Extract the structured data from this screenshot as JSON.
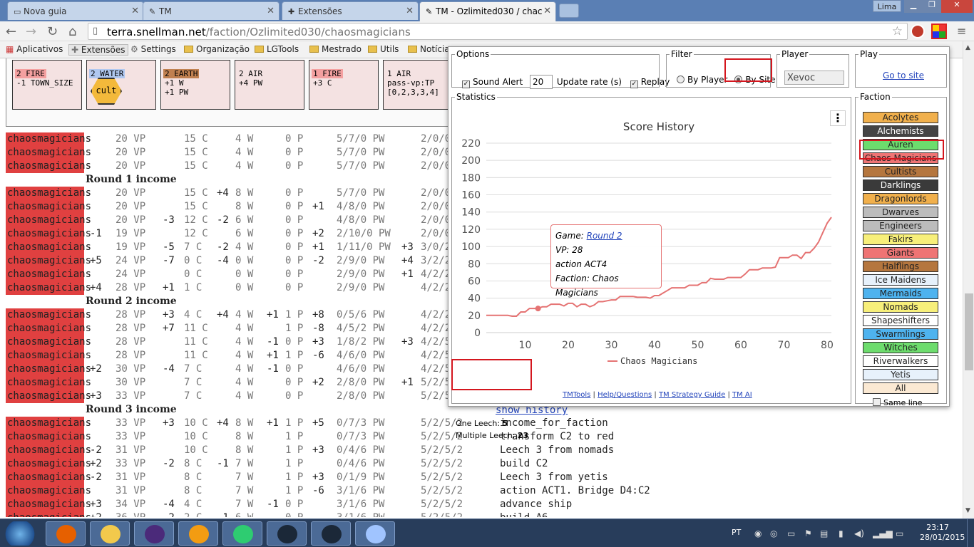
{
  "tabs": [
    {
      "label": "Nova guia",
      "icon": "page-icon"
    },
    {
      "label": "TM",
      "icon": "tools-icon"
    },
    {
      "label": "Extensões",
      "icon": "puzzle-icon"
    },
    {
      "label": "TM - Ozlimited030 / chac",
      "icon": "tools-icon"
    }
  ],
  "window": {
    "user": "Lima"
  },
  "address": {
    "host": "terra.snellman.net",
    "path": "/faction/Ozlimited030/chaosmagicians"
  },
  "bookmarks": [
    "Aplicativos",
    "Extensões",
    "Settings",
    "Organização",
    "LGTools",
    "Mestrado",
    "Utils",
    "Notícia"
  ],
  "cult_cards": [
    {
      "line1": "2 FIRE",
      "line2": "-1 TOWN_SIZE",
      "line3": "",
      "color": "#f4a0a0"
    },
    {
      "line1": "2 WATER",
      "line2": "",
      "line3": "",
      "color": "#b0c8f0",
      "badge": "cult"
    },
    {
      "line1": "2 EARTH",
      "line2": "+1 W",
      "line3": "+1 PW",
      "color": "#c08050"
    },
    {
      "line1": "2 AIR",
      "line2": "+4 PW",
      "line3": "",
      "color": ""
    },
    {
      "line1": "1 FIRE",
      "line2": "+3 C",
      "line3": "",
      "color": "#f4a0a0"
    },
    {
      "line1": "1 AIR",
      "line2": "pass-vp:TP",
      "line3": "[0,2,3,3,4]",
      "color": ""
    }
  ],
  "ledger": {
    "faction": "chaosmagicians",
    "rows": [
      {
        "dvp": "",
        "vp": "20 VP",
        "dc": "",
        "c": "15 C",
        "dw": "",
        "w": "4 W",
        "dp": "",
        "p": "0 P",
        "dpw": "",
        "pw": "5/7/0 PW",
        "dcult": "",
        "cult": "2/0/0"
      },
      {
        "dvp": "",
        "vp": "20 VP",
        "dc": "",
        "c": "15 C",
        "dw": "",
        "w": "4 W",
        "dp": "",
        "p": "0 P",
        "dpw": "",
        "pw": "5/7/0 PW",
        "dcult": "",
        "cult": "2/0/0"
      },
      {
        "dvp": "",
        "vp": "20 VP",
        "dc": "",
        "c": "15 C",
        "dw": "",
        "w": "4 W",
        "dp": "",
        "p": "0 P",
        "dpw": "",
        "pw": "5/7/0 PW",
        "dcult": "",
        "cult": "2/0/0"
      },
      {
        "head": "Round 1 income"
      },
      {
        "dvp": "",
        "vp": "20 VP",
        "dc": "",
        "c": "15 C",
        "dw": "+4",
        "w": "8 W",
        "dp": "",
        "p": "0 P",
        "dpw": "",
        "pw": "5/7/0 PW",
        "dcult": "",
        "cult": "2/0/0"
      },
      {
        "dvp": "",
        "vp": "20 VP",
        "dc": "",
        "c": "15 C",
        "dw": "",
        "w": "8 W",
        "dp": "",
        "p": "0 P",
        "dpw": "+1",
        "pw": "4/8/0 PW",
        "dcult": "",
        "cult": "2/0/0"
      },
      {
        "dvp": "",
        "vp": "20 VP",
        "dc": "-3",
        "c": "12 C",
        "dw": "-2",
        "w": "6 W",
        "dp": "",
        "p": "0 P",
        "dpw": "",
        "pw": "4/8/0 PW",
        "dcult": "",
        "cult": "2/0/0"
      },
      {
        "dvp": "-1",
        "vp": "19 VP",
        "dc": "",
        "c": "12 C",
        "dw": "",
        "w": "6 W",
        "dp": "",
        "p": "0 P",
        "dpw": "+2",
        "pw": "2/10/0 PW",
        "dcult": "",
        "cult": "2/0/0"
      },
      {
        "dvp": "",
        "vp": "19 VP",
        "dc": "-5",
        "c": "7 C",
        "dw": "-2",
        "w": "4 W",
        "dp": "",
        "p": "0 P",
        "dpw": "+1",
        "pw": "1/11/0 PW",
        "dcult": "+3",
        "cult": "3/0/2"
      },
      {
        "dvp": "+5",
        "vp": "24 VP",
        "dc": "-7",
        "c": "0 C",
        "dw": "-4",
        "w": "0 W",
        "dp": "",
        "p": "0 P",
        "dpw": "-2",
        "pw": "2/9/0 PW",
        "dcult": "+4",
        "cult": "3/2/2"
      },
      {
        "dvp": "",
        "vp": "24 VP",
        "dc": "",
        "c": "0 C",
        "dw": "",
        "w": "0 W",
        "dp": "",
        "p": "0 P",
        "dpw": "",
        "pw": "2/9/0 PW",
        "dcult": "+1",
        "cult": "4/2/2"
      },
      {
        "dvp": "+4",
        "vp": "28 VP",
        "dc": "+1",
        "c": "1 C",
        "dw": "",
        "w": "0 W",
        "dp": "",
        "p": "0 P",
        "dpw": "",
        "pw": "2/9/0 PW",
        "dcult": "",
        "cult": "4/2/2"
      },
      {
        "head": "Round 2 income"
      },
      {
        "dvp": "",
        "vp": "28 VP",
        "dc": "+3",
        "c": "4 C",
        "dw": "+4",
        "w": "4 W",
        "dp": "+1",
        "p": "1 P",
        "dpw": "+8",
        "pw": "0/5/6 PW",
        "dcult": "",
        "cult": "4/2/2"
      },
      {
        "dvp": "",
        "vp": "28 VP",
        "dc": "+7",
        "c": "11 C",
        "dw": "",
        "w": "4 W",
        "dp": "",
        "p": "1 P",
        "dpw": "-8",
        "pw": "4/5/2 PW",
        "dcult": "",
        "cult": "4/2/2"
      },
      {
        "dvp": "",
        "vp": "28 VP",
        "dc": "",
        "c": "11 C",
        "dw": "",
        "w": "4 W",
        "dp": "-1",
        "p": "0 P",
        "dpw": "+3",
        "pw": "1/8/2 PW",
        "dcult": "+3",
        "cult": "4/2/5"
      },
      {
        "dvp": "",
        "vp": "28 VP",
        "dc": "",
        "c": "11 C",
        "dw": "",
        "w": "4 W",
        "dp": "+1",
        "p": "1 P",
        "dpw": "-6",
        "pw": "4/6/0 PW",
        "dcult": "",
        "cult": "4/2/5"
      },
      {
        "dvp": "+2",
        "vp": "30 VP",
        "dc": "-4",
        "c": "7 C",
        "dw": "",
        "w": "4 W",
        "dp": "-1",
        "p": "0 P",
        "dpw": "",
        "pw": "4/6/0 PW",
        "dcult": "",
        "cult": "4/2/5"
      },
      {
        "dvp": "",
        "vp": "30 VP",
        "dc": "",
        "c": "7 C",
        "dw": "",
        "w": "4 W",
        "dp": "",
        "p": "0 P",
        "dpw": "+2",
        "pw": "2/8/0 PW",
        "dcult": "+1",
        "cult": "5/2/5"
      },
      {
        "dvp": "+3",
        "vp": "33 VP",
        "dc": "",
        "c": "7 C",
        "dw": "",
        "w": "4 W",
        "dp": "",
        "p": "0 P",
        "dpw": "",
        "pw": "2/8/0 PW",
        "dcult": "",
        "cult": "5/2/5"
      },
      {
        "head": "Round 3 income"
      },
      {
        "dvp": "",
        "vp": "33 VP",
        "dc": "+3",
        "c": "10 C",
        "dw": "+4",
        "w": "8 W",
        "dp": "+1",
        "p": "1 P",
        "dpw": "+5",
        "pw": "0/7/3 PW",
        "dcult": "",
        "cult": "5/2/5/2",
        "action": "income_for_faction"
      },
      {
        "dvp": "",
        "vp": "33 VP",
        "dc": "",
        "c": "10 C",
        "dw": "",
        "w": "8 W",
        "dp": "",
        "p": "1 P",
        "dpw": "",
        "pw": "0/7/3 PW",
        "dcult": "",
        "cult": "5/2/5/2",
        "action": "transform C2 to red"
      },
      {
        "dvp": "-2",
        "vp": "31 VP",
        "dc": "",
        "c": "10 C",
        "dw": "",
        "w": "8 W",
        "dp": "",
        "p": "1 P",
        "dpw": "+3",
        "pw": "0/4/6 PW",
        "dcult": "",
        "cult": "5/2/5/2",
        "action": "Leech 3 from nomads"
      },
      {
        "dvp": "+2",
        "vp": "33 VP",
        "dc": "-2",
        "c": "8 C",
        "dw": "-1",
        "w": "7 W",
        "dp": "",
        "p": "1 P",
        "dpw": "",
        "pw": "0/4/6 PW",
        "dcult": "",
        "cult": "5/2/5/2",
        "action": "build C2"
      },
      {
        "dvp": "-2",
        "vp": "31 VP",
        "dc": "",
        "c": "8 C",
        "dw": "",
        "w": "7 W",
        "dp": "",
        "p": "1 P",
        "dpw": "+3",
        "pw": "0/1/9 PW",
        "dcult": "",
        "cult": "5/2/5/2",
        "action": "Leech 3 from yetis"
      },
      {
        "dvp": "",
        "vp": "31 VP",
        "dc": "",
        "c": "8 C",
        "dw": "",
        "w": "7 W",
        "dp": "",
        "p": "1 P",
        "dpw": "-6",
        "pw": "3/1/6 PW",
        "dcult": "",
        "cult": "5/2/5/2",
        "action": "action ACT1. Bridge D4:C2"
      },
      {
        "dvp": "+3",
        "vp": "34 VP",
        "dc": "-4",
        "c": "4 C",
        "dw": "",
        "w": "7 W",
        "dp": "-1",
        "p": "0 P",
        "dpw": "",
        "pw": "3/1/6 PW",
        "dcult": "",
        "cult": "5/2/5/2",
        "action": "advance ship"
      },
      {
        "dvp": "+2",
        "vp": "36 VP",
        "dc": "-2",
        "c": "2 C",
        "dw": "-1",
        "w": "6 W",
        "dp": "",
        "p": "0 P",
        "dpw": "",
        "pw": "3/1/6 PW",
        "dcult": "",
        "cult": "5/2/5/2",
        "action": "build A6"
      }
    ],
    "show_history": "show history"
  },
  "popup": {
    "options": {
      "legend": "Options",
      "sound_alert": "Sound Alert",
      "update_rate_value": "20",
      "update_rate_label": "Update rate (s)",
      "replay": "Replay"
    },
    "filter": {
      "legend": "Filter",
      "by_player": "By Player",
      "by_site": "By Site",
      "selected": "By Site"
    },
    "player": {
      "legend": "Player",
      "value": "Xevoc"
    },
    "play": {
      "legend": "Play",
      "link": "Go to site"
    },
    "statistics": {
      "legend": "Statistics",
      "menu_icon": "menu-icon"
    },
    "leech": {
      "one_label": "One Leech:",
      "one_value": "5",
      "multi_label": "Multiple Leech:",
      "multi_value": "23"
    },
    "tooltip": {
      "game_label": "Game:",
      "game_value": "Round 2",
      "vp": "VP: 28",
      "action": "action ACT4",
      "faction": "Faction: Chaos Magicians"
    },
    "faction": {
      "legend": "Faction",
      "items": [
        {
          "name": "Acolytes",
          "color": "#f1b04c"
        },
        {
          "name": "Alchemists",
          "color": "#444444",
          "text": "#fff"
        },
        {
          "name": "Auren",
          "color": "#6ddc6d"
        },
        {
          "name": "Chaos Magicians",
          "color": "#ef7474"
        },
        {
          "name": "Cultists",
          "color": "#b5763e"
        },
        {
          "name": "Darklings",
          "color": "#3a3a3a",
          "text": "#fff"
        },
        {
          "name": "Dragonlords",
          "color": "#f1b04c"
        },
        {
          "name": "Dwarves",
          "color": "#bcbcbc"
        },
        {
          "name": "Engineers",
          "color": "#bcbcbc"
        },
        {
          "name": "Fakirs",
          "color": "#f7ef7a"
        },
        {
          "name": "Giants",
          "color": "#ef7474"
        },
        {
          "name": "Halflings",
          "color": "#b5763e"
        },
        {
          "name": "Ice Maidens",
          "color": "#e7f1fb"
        },
        {
          "name": "Mermaids",
          "color": "#4eb3ef"
        },
        {
          "name": "Nomads",
          "color": "#f7ef7a"
        },
        {
          "name": "Shapeshifters",
          "color": "#ffffff"
        },
        {
          "name": "Swarmlings",
          "color": "#4eb3ef"
        },
        {
          "name": "Witches",
          "color": "#6ddc6d"
        },
        {
          "name": "Riverwalkers",
          "color": "#ffffff"
        },
        {
          "name": "Yetis",
          "color": "#e7f1fb"
        },
        {
          "name": "All",
          "color": "#fbe9d3"
        }
      ],
      "same_line": "Same line"
    },
    "footer": [
      "TMTools",
      "Help/Questions",
      "TM Strategy Guide",
      "TM AI"
    ]
  },
  "chart_data": {
    "type": "line",
    "title": "Score History",
    "xlabel": "",
    "ylabel": "",
    "xlim": [
      1,
      81
    ],
    "ylim": [
      0,
      220
    ],
    "xticks": [
      10,
      20,
      30,
      40,
      50,
      60,
      70,
      80
    ],
    "yticks": [
      0,
      20,
      40,
      60,
      80,
      100,
      120,
      140,
      160,
      180,
      200,
      220
    ],
    "grid": true,
    "legend_position": "bottom",
    "series": [
      {
        "name": "Chaos Magicians",
        "color": "#e57373",
        "x": [
          1,
          2,
          3,
          4,
          5,
          6,
          7,
          8,
          9,
          10,
          11,
          12,
          13,
          14,
          15,
          16,
          17,
          18,
          19,
          20,
          21,
          22,
          23,
          24,
          25,
          26,
          27,
          28,
          29,
          30,
          31,
          32,
          33,
          34,
          35,
          36,
          37,
          38,
          39,
          40,
          41,
          42,
          43,
          44,
          45,
          46,
          47,
          48,
          49,
          50,
          51,
          52,
          53,
          54,
          55,
          56,
          57,
          58,
          59,
          60,
          61,
          62,
          63,
          64,
          65,
          66,
          67,
          68,
          69,
          70,
          71,
          72,
          73,
          74,
          75,
          76,
          77,
          78,
          79,
          80,
          81
        ],
        "y": [
          20,
          20,
          20,
          20,
          20,
          20,
          19,
          19,
          24,
          24,
          28,
          28,
          28,
          30,
          30,
          33,
          33,
          33,
          31,
          34,
          34,
          30,
          33,
          33,
          30,
          32,
          36,
          36,
          37,
          38,
          38,
          42,
          42,
          42,
          42,
          41,
          41,
          41,
          40,
          43,
          43,
          46,
          49,
          52,
          52,
          52,
          52,
          55,
          55,
          55,
          58,
          58,
          63,
          62,
          62,
          62,
          64,
          64,
          64,
          64,
          68,
          73,
          73,
          73,
          75,
          75,
          75,
          76,
          87,
          87,
          87,
          90,
          90,
          86,
          93,
          93,
          98,
          105,
          116,
          127,
          134
        ]
      }
    ]
  },
  "taskbar": {
    "lang": "PT",
    "time": "23:17",
    "date": "28/01/2015",
    "apps": [
      "windows-icon",
      "firefox-icon",
      "file-explorer-icon",
      "eclipse-icon",
      "media-player-icon",
      "chrome-icon",
      "steam-icon",
      "dota-icon",
      "paint-icon"
    ]
  }
}
